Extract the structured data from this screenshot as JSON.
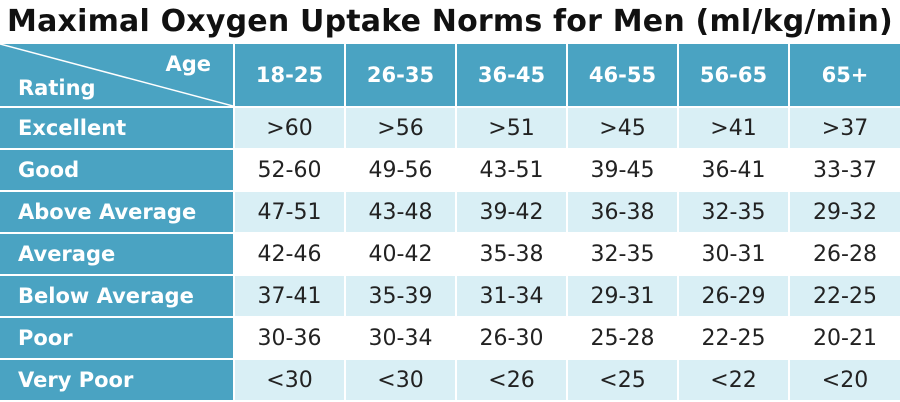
{
  "title": "Maximal Oxygen Uptake Norms for Men (ml/kg/min)",
  "corner": {
    "col_axis_label": "Age",
    "row_axis_label": "Rating"
  },
  "columns": [
    "18-25",
    "26-35",
    "36-45",
    "46-55",
    "56-65",
    "65+"
  ],
  "rows": [
    {
      "label": "Excellent",
      "values": [
        ">60",
        ">56",
        ">51",
        ">45",
        ">41",
        ">37"
      ]
    },
    {
      "label": "Good",
      "values": [
        "52-60",
        "49-56",
        "43-51",
        "39-45",
        "36-41",
        "33-37"
      ]
    },
    {
      "label": "Above Average",
      "values": [
        "47-51",
        "43-48",
        "39-42",
        "36-38",
        "32-35",
        "29-32"
      ]
    },
    {
      "label": "Average",
      "values": [
        "42-46",
        "40-42",
        "35-38",
        "32-35",
        "30-31",
        "26-28"
      ]
    },
    {
      "label": "Below Average",
      "values": [
        "37-41",
        "35-39",
        "31-34",
        "29-31",
        "26-29",
        "22-25"
      ]
    },
    {
      "label": "Poor",
      "values": [
        "30-36",
        "30-34",
        "26-30",
        "25-28",
        "22-25",
        "20-21"
      ]
    },
    {
      "label": "Very Poor",
      "values": [
        "<30",
        "<30",
        "<26",
        "<25",
        "<22",
        "<20"
      ]
    }
  ],
  "colors": {
    "header_bg": "#4aa3c2",
    "shade_bg": "#d9eff5",
    "plain_bg": "#ffffff"
  }
}
